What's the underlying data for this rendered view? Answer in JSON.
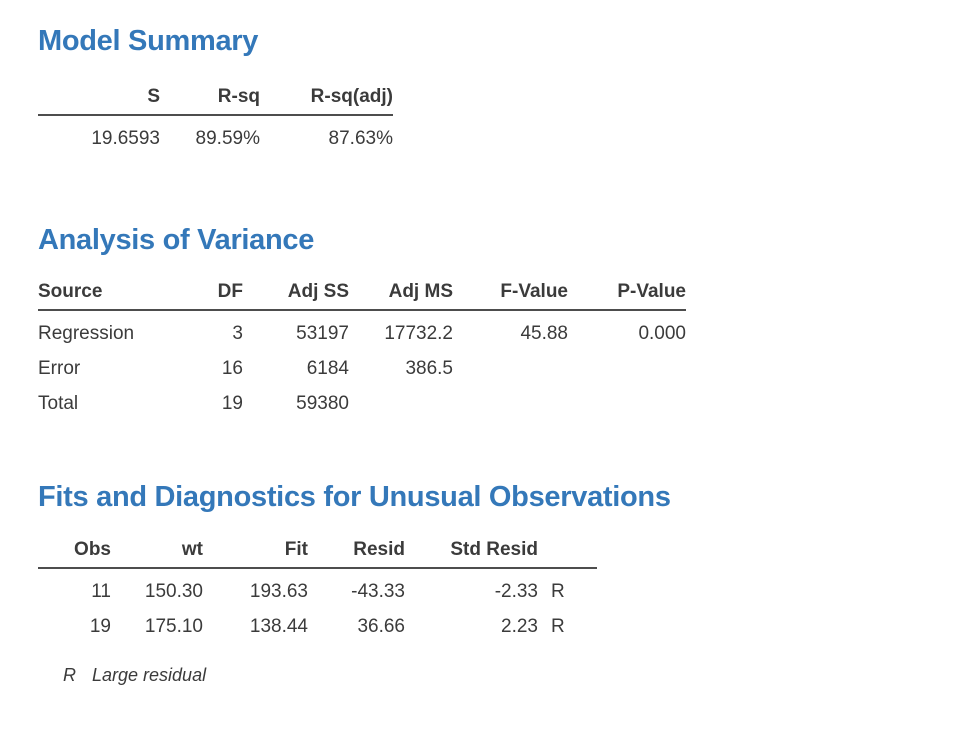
{
  "colors": {
    "heading": "#3478b9",
    "text": "#3b3b3b",
    "rule": "#4d4d4d",
    "background": "#ffffff"
  },
  "sections": [
    {
      "title": "Model Summary",
      "table": {
        "columns": [
          "S",
          "R-sq",
          "R-sq(adj)"
        ],
        "rows": [
          [
            "19.6593",
            "89.59%",
            "87.63%"
          ]
        ]
      }
    },
    {
      "title": "Analysis of Variance",
      "table": {
        "columns": [
          "Source",
          "DF",
          "Adj SS",
          "Adj MS",
          "F-Value",
          "P-Value"
        ],
        "rows": [
          [
            "Regression",
            "3",
            "53197",
            "17732.2",
            "45.88",
            "0.000"
          ],
          [
            "Error",
            "16",
            "6184",
            "386.5",
            "",
            ""
          ],
          [
            "Total",
            "19",
            "59380",
            "",
            "",
            ""
          ]
        ]
      }
    },
    {
      "title": "Fits and Diagnostics for Unusual Observations",
      "table": {
        "columns": [
          "Obs",
          "wt",
          "Fit",
          "Resid",
          "Std Resid",
          ""
        ],
        "rows": [
          [
            "11",
            "150.30",
            "193.63",
            "-43.33",
            "-2.33",
            "R"
          ],
          [
            "19",
            "175.10",
            "138.44",
            "36.66",
            "2.23",
            "R"
          ]
        ]
      },
      "footnote": {
        "symbol": "R",
        "text": "Large residual"
      }
    }
  ]
}
